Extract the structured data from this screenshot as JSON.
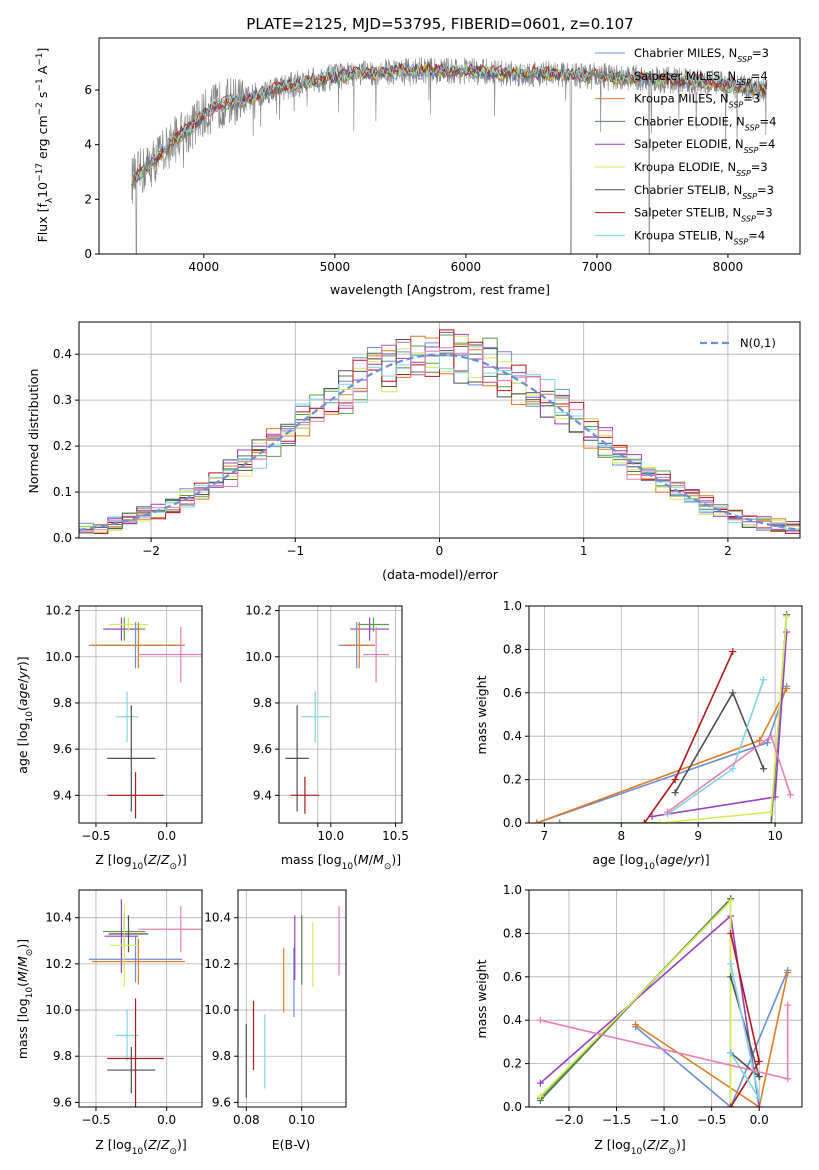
{
  "figure": {
    "title": "PLATE=2125, MJD=53795, FIBERID=0601, z=0.107"
  },
  "models": [
    {
      "label": "Chabrier MILES, N_SSP=3",
      "color": "#6b8fd6"
    },
    {
      "label": "Salpeter MILES, N_SSP=4",
      "color": "#53a043"
    },
    {
      "label": "Kroupa MILES, N_SSP=3",
      "color": "#e07b24"
    },
    {
      "label": "Chabrier ELODIE, N_SSP=4",
      "color": "#5a7a55"
    },
    {
      "label": "Salpeter ELODIE, N_SSP=4",
      "color": "#9a3fc2"
    },
    {
      "label": "Kroupa ELODIE, N_SSP=3",
      "color": "#d5ec5b"
    },
    {
      "label": "Chabrier STELIB, N_SSP=3",
      "color": "#505050"
    },
    {
      "label": "Salpeter STELIB, N_SSP=3",
      "color": "#b0181c"
    },
    {
      "label": "Kroupa STELIB, N_SSP=4",
      "color": "#7fd6e0"
    }
  ],
  "extra_color": "#e77fb6",
  "chart_data": [
    {
      "id": "spectrum",
      "type": "line",
      "xlabel": "wavelength [Angstrom, rest frame]",
      "ylabel": "Flux [f_λ10^-17 erg cm^-2 s^-1 A^-1]",
      "xlim": [
        3200,
        8550
      ],
      "ylim": [
        0,
        7.9
      ],
      "xticks": [
        4000,
        5000,
        6000,
        7000,
        8000
      ],
      "yticks": [
        0,
        2,
        4,
        6
      ],
      "grid": false,
      "legend": "top-right",
      "data_color": "#808080",
      "continuum": {
        "x": [
          3450,
          3500,
          3600,
          3700,
          3800,
          3900,
          4000,
          4100,
          4200,
          4300,
          4500,
          4700,
          4900,
          5200,
          5500,
          5800,
          6000,
          6300,
          6600,
          7000,
          7400,
          7800,
          8100,
          8300
        ],
        "y": [
          2.7,
          2.9,
          3.3,
          3.8,
          4.3,
          4.6,
          5.1,
          5.4,
          5.6,
          5.6,
          6.0,
          6.2,
          6.4,
          6.6,
          6.7,
          6.7,
          6.7,
          6.6,
          6.6,
          6.5,
          6.4,
          6.3,
          6.1,
          6.0
        ]
      }
    },
    {
      "id": "residuals",
      "type": "bar",
      "xlabel": "(data-model)/error",
      "ylabel": "Normed distribution",
      "xlim": [
        -2.5,
        2.5
      ],
      "ylim": [
        0,
        0.47
      ],
      "xticks": [
        -2,
        -1,
        0,
        1,
        2
      ],
      "yticks": [
        0.0,
        0.1,
        0.2,
        0.3,
        0.4
      ],
      "grid": true,
      "legend": "top-right",
      "gaussian": {
        "label": "N(0,1)",
        "mean": 0,
        "sigma": 1,
        "color": "#6b8fd6"
      },
      "bin_width": 0.1
    },
    {
      "id": "age-vs-Z",
      "type": "scatter",
      "xlabel": "Z [log10(Z/Z⊙)]",
      "ylabel": "age [log10(age/yr)]",
      "xlim": [
        -0.62,
        0.25
      ],
      "ylim": [
        9.28,
        10.22
      ],
      "xticks": [
        -0.5,
        0.0
      ],
      "xticklabels": [
        "−0.5",
        "0.0"
      ],
      "yticks": [
        9.4,
        9.6,
        9.8,
        10.0,
        10.2
      ],
      "yticklabels": [
        "9.4",
        "9.6",
        "9.8",
        "10.0",
        "10.2"
      ],
      "grid": true,
      "points": [
        {
          "x": -0.3,
          "y": 10.12,
          "xerr": 0.15,
          "yerr": 0.05,
          "c": 1
        },
        {
          "x": -0.32,
          "y": 10.12,
          "xerr": 0.12,
          "yerr": 0.05,
          "c": 4
        },
        {
          "x": -0.27,
          "y": 10.14,
          "xerr": 0.14,
          "yerr": 0.03,
          "c": 5
        },
        {
          "x": -0.22,
          "y": 10.05,
          "xerr": 0.33,
          "yerr": 0.1,
          "c": 0
        },
        {
          "x": -0.2,
          "y": 10.05,
          "xerr": 0.33,
          "yerr": 0.1,
          "c": 2
        },
        {
          "x": 0.1,
          "y": 10.01,
          "xerr": 0.3,
          "yerr": 0.12,
          "c": 9
        },
        {
          "x": -0.28,
          "y": 9.74,
          "xerr": 0.08,
          "yerr": 0.11,
          "c": 8
        },
        {
          "x": -0.25,
          "y": 9.56,
          "xerr": 0.17,
          "yerr": 0.23,
          "c": 6
        },
        {
          "x": -0.22,
          "y": 9.4,
          "xerr": 0.2,
          "yerr": 0.1,
          "c": 7
        }
      ]
    },
    {
      "id": "age-vs-mass",
      "type": "scatter",
      "xlabel": "mass [log10(M/M⊙)]",
      "ylabel": "",
      "xlim": [
        9.6,
        10.55
      ],
      "ylim": [
        9.28,
        10.22
      ],
      "xticks": [
        10.0,
        10.5
      ],
      "xticklabels": [
        "10.0",
        "10.5"
      ],
      "extra_xticks": [
        9.9
      ],
      "yticks": [
        9.4,
        9.6,
        9.8,
        10.0,
        10.2
      ],
      "yticklabels": [
        "9.4",
        "9.6",
        "9.8",
        "10.0",
        "10.2"
      ],
      "grid": true,
      "points": [
        {
          "x": 10.3,
          "y": 10.12,
          "xerr": 0.15,
          "yerr": 0.05,
          "c": 4
        },
        {
          "x": 10.33,
          "y": 10.14,
          "xerr": 0.12,
          "yerr": 0.03,
          "c": 1
        },
        {
          "x": 10.2,
          "y": 10.05,
          "xerr": 0.14,
          "yerr": 0.1,
          "c": 0
        },
        {
          "x": 10.22,
          "y": 10.05,
          "xerr": 0.12,
          "yerr": 0.1,
          "c": 2
        },
        {
          "x": 10.35,
          "y": 10.01,
          "xerr": 0.1,
          "yerr": 0.12,
          "c": 9
        },
        {
          "x": 9.88,
          "y": 9.74,
          "xerr": 0.11,
          "yerr": 0.11,
          "c": 8
        },
        {
          "x": 9.74,
          "y": 9.56,
          "xerr": 0.09,
          "yerr": 0.23,
          "c": 6
        },
        {
          "x": 9.8,
          "y": 9.4,
          "xerr": 0.11,
          "yerr": 0.08,
          "c": 7
        }
      ]
    },
    {
      "id": "weight-vs-age",
      "type": "line",
      "xlabel": "age [log10(age/yr)]",
      "ylabel": "mass weight",
      "xlim": [
        6.8,
        10.35
      ],
      "ylim": [
        0,
        1.0
      ],
      "xticks": [
        7,
        8,
        9,
        10
      ],
      "xticklabels": [
        "7",
        "8",
        "9",
        "10"
      ],
      "yticks": [
        0.0,
        0.2,
        0.4,
        0.6,
        0.8,
        1.0
      ],
      "yticklabels": [
        "0.0",
        "0.2",
        "0.4",
        "0.6",
        "0.8",
        "1.0"
      ],
      "grid": true,
      "series": [
        {
          "c": 0,
          "x": [
            6.9,
            9.9,
            10.15
          ],
          "y": [
            0.0,
            0.37,
            0.63
          ]
        },
        {
          "c": 1,
          "x": [
            7.2,
            9.95,
            10.15
          ],
          "y": [
            0.0,
            0.0,
            0.96
          ]
        },
        {
          "c": 2,
          "x": [
            6.9,
            9.8,
            10.15
          ],
          "y": [
            0.0,
            0.38,
            0.62
          ]
        },
        {
          "c": 3,
          "x": [
            8.3,
            9.95,
            10.15
          ],
          "y": [
            0.0,
            0.0,
            0.96
          ]
        },
        {
          "c": 4,
          "x": [
            8.4,
            10.0,
            10.15
          ],
          "y": [
            0.03,
            0.12,
            0.88
          ]
        },
        {
          "c": 5,
          "x": [
            8.5,
            9.95,
            10.15
          ],
          "y": [
            0.0,
            0.05,
            0.95
          ]
        },
        {
          "c": 6,
          "x": [
            8.7,
            9.45,
            9.85
          ],
          "y": [
            0.14,
            0.6,
            0.25
          ]
        },
        {
          "c": 7,
          "x": [
            8.3,
            8.7,
            9.45
          ],
          "y": [
            0.0,
            0.2,
            0.79
          ]
        },
        {
          "c": 8,
          "x": [
            8.6,
            9.45,
            9.85
          ],
          "y": [
            0.04,
            0.25,
            0.66
          ]
        },
        {
          "c": 9,
          "x": [
            8.6,
            9.95,
            10.2
          ],
          "y": [
            0.05,
            0.4,
            0.13
          ]
        }
      ]
    },
    {
      "id": "mass-vs-Z",
      "type": "scatter",
      "xlabel": "Z [log10(Z/Z⊙)]",
      "ylabel": "mass [log10(M/M⊙)]",
      "xlim": [
        -0.62,
        0.25
      ],
      "ylim": [
        9.58,
        10.52
      ],
      "xticks": [
        -0.5,
        0.0
      ],
      "xticklabels": [
        "−0.5",
        "0.0"
      ],
      "yticks": [
        9.6,
        9.8,
        10.0,
        10.2,
        10.4
      ],
      "yticklabels": [
        "9.6",
        "9.8",
        "10.0",
        "10.2",
        "10.4"
      ],
      "grid": true,
      "points": [
        {
          "x": -0.3,
          "y": 10.34,
          "xerr": 0.15,
          "yerr": 0.08,
          "c": 1
        },
        {
          "x": -0.32,
          "y": 10.32,
          "xerr": 0.12,
          "yerr": 0.16,
          "c": 4
        },
        {
          "x": -0.27,
          "y": 10.33,
          "xerr": 0.14,
          "yerr": 0.08,
          "c": 6
        },
        {
          "x": -0.22,
          "y": 10.22,
          "xerr": 0.33,
          "yerr": 0.1,
          "c": 0
        },
        {
          "x": -0.2,
          "y": 10.21,
          "xerr": 0.33,
          "yerr": 0.1,
          "c": 2
        },
        {
          "x": -0.3,
          "y": 10.28,
          "xerr": 0.1,
          "yerr": 0.18,
          "c": 5
        },
        {
          "x": 0.1,
          "y": 10.35,
          "xerr": 0.3,
          "yerr": 0.1,
          "c": 9
        },
        {
          "x": -0.28,
          "y": 9.89,
          "xerr": 0.08,
          "yerr": 0.11,
          "c": 8
        },
        {
          "x": -0.25,
          "y": 9.74,
          "xerr": 0.17,
          "yerr": 0.1,
          "c": 6
        },
        {
          "x": -0.22,
          "y": 9.79,
          "xerr": 0.2,
          "yerr": 0.26,
          "c": 7
        }
      ]
    },
    {
      "id": "mass-vs-ebv",
      "type": "scatter",
      "xlabel": "E(B-V)",
      "ylabel": "",
      "xlim": [
        0.077,
        0.116
      ],
      "ylim": [
        9.58,
        10.52
      ],
      "xticks": [
        0.08,
        0.1
      ],
      "xticklabels": [
        "0.08",
        "0.10"
      ],
      "yticks": [
        9.6,
        9.8,
        10.0,
        10.2,
        10.4
      ],
      "yticklabels": [
        "9.6",
        "9.8",
        "10.0",
        "10.2",
        "10.4"
      ],
      "grid": true,
      "points": [
        {
          "x": 0.08,
          "y": 9.78,
          "yerr": 0.16,
          "c": 6
        },
        {
          "x": 0.0826,
          "y": 9.89,
          "yerr": 0.15,
          "c": 7
        },
        {
          "x": 0.0867,
          "y": 9.82,
          "yerr": 0.16,
          "c": 8
        },
        {
          "x": 0.0935,
          "y": 10.13,
          "yerr": 0.14,
          "c": 2
        },
        {
          "x": 0.0972,
          "y": 10.12,
          "yerr": 0.15,
          "c": 0
        },
        {
          "x": 0.0975,
          "y": 10.27,
          "yerr": 0.14,
          "c": 4
        },
        {
          "x": 0.1,
          "y": 10.26,
          "yerr": 0.15,
          "c": 3
        },
        {
          "x": 0.104,
          "y": 10.24,
          "yerr": 0.14,
          "c": 5
        },
        {
          "x": 0.1135,
          "y": 10.3,
          "yerr": 0.15,
          "c": 9
        }
      ]
    },
    {
      "id": "weight-vs-Z",
      "type": "line",
      "xlabel": "Z [log10(Z/Z⊙)]",
      "ylabel": "mass weight",
      "xlim": [
        -2.42,
        0.45
      ],
      "ylim": [
        0,
        1.0
      ],
      "xticks": [
        -2.0,
        -1.5,
        -1.0,
        -0.5,
        0.0
      ],
      "xticklabels": [
        "−2.0",
        "−1.5",
        "−1.0",
        "−0.5",
        "0.0"
      ],
      "yticks": [
        0.0,
        0.2,
        0.4,
        0.6,
        0.8,
        1.0
      ],
      "yticklabels": [
        "0.0",
        "0.2",
        "0.4",
        "0.6",
        "0.8",
        "1.0"
      ],
      "grid": true,
      "series": [
        {
          "c": 0,
          "x": [
            -1.3,
            -0.3,
            0.3
          ],
          "y": [
            0.37,
            0.0,
            0.63
          ]
        },
        {
          "c": 1,
          "x": [
            -2.3,
            -0.3,
            -0.3
          ],
          "y": [
            0.04,
            0.96,
            0.0
          ]
        },
        {
          "c": 2,
          "x": [
            -1.3,
            0.0,
            0.3
          ],
          "y": [
            0.38,
            0.0,
            0.62
          ]
        },
        {
          "c": 3,
          "x": [
            -2.3,
            -0.3,
            -0.3
          ],
          "y": [
            0.03,
            0.96,
            0.0
          ]
        },
        {
          "c": 4,
          "x": [
            -2.3,
            -0.3,
            0.0
          ],
          "y": [
            0.11,
            0.88,
            0.0
          ]
        },
        {
          "c": 5,
          "x": [
            -2.3,
            -0.3,
            -0.3
          ],
          "y": [
            0.05,
            0.95,
            0.0
          ]
        },
        {
          "c": 6,
          "x": [
            -0.3,
            0.0,
            -0.3
          ],
          "y": [
            0.25,
            0.14,
            0.6
          ]
        },
        {
          "c": 7,
          "x": [
            -0.3,
            0.0,
            -0.3
          ],
          "y": [
            0.8,
            0.21,
            0.0
          ]
        },
        {
          "c": 8,
          "x": [
            -0.3,
            0.0,
            -0.3
          ],
          "y": [
            0.66,
            0.04,
            0.25
          ]
        },
        {
          "c": 9,
          "x": [
            -2.3,
            0.3,
            0.3
          ],
          "y": [
            0.4,
            0.13,
            0.47
          ]
        }
      ]
    }
  ]
}
